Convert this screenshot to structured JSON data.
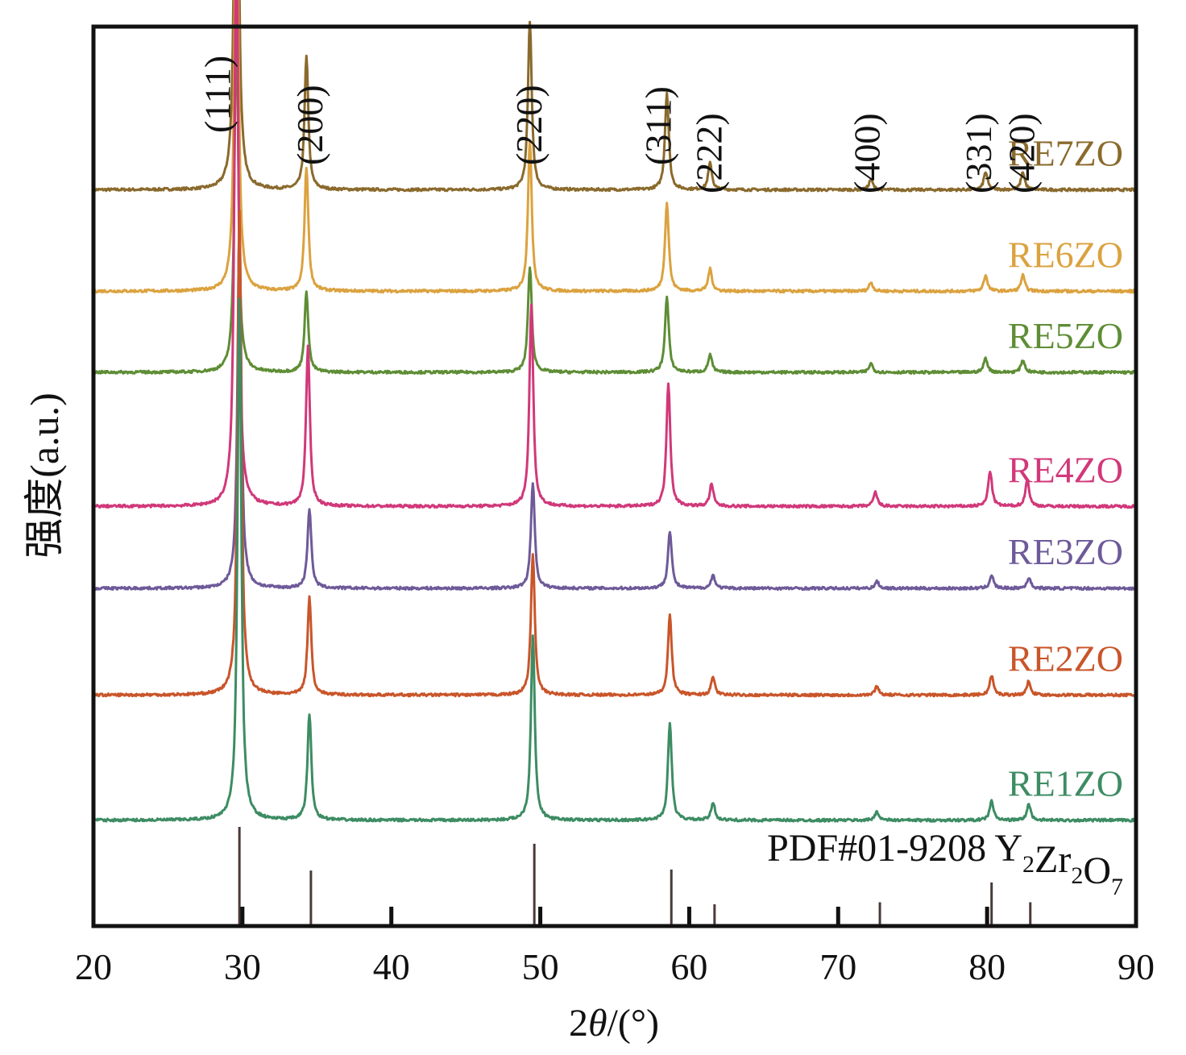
{
  "chart_data": {
    "type": "line",
    "title": "",
    "xlabel": "2θ/(°)",
    "xlabel_parts": {
      "prefix": "2",
      "theta": "θ",
      "suffix": "/(°)"
    },
    "ylabel": "强度(a.u.)",
    "xlim": [
      20,
      90
    ],
    "xticks": [
      20,
      30,
      40,
      50,
      60,
      70,
      80,
      90
    ],
    "grid": false,
    "legend": "inline labels at right end of each curve",
    "series": [
      {
        "name": "RE7ZO",
        "color": "#8a6a2c",
        "baseline": 0.835,
        "scale": 1.0,
        "peaks": [
          [
            29.6,
            0.62
          ],
          [
            34.3,
            0.15
          ],
          [
            49.3,
            0.19
          ],
          [
            58.5,
            0.11
          ],
          [
            61.4,
            0.03
          ],
          [
            72.2,
            0.012
          ],
          [
            79.9,
            0.02
          ],
          [
            82.4,
            0.02
          ]
        ]
      },
      {
        "name": "RE6ZO",
        "color": "#dba23f",
        "baseline": 0.72,
        "scale": 1.0,
        "peaks": [
          [
            29.6,
            0.52
          ],
          [
            34.3,
            0.14
          ],
          [
            49.3,
            0.17
          ],
          [
            58.5,
            0.1
          ],
          [
            61.4,
            0.025
          ],
          [
            72.2,
            0.01
          ],
          [
            79.9,
            0.018
          ],
          [
            82.4,
            0.018
          ]
        ]
      },
      {
        "name": "RE5ZO",
        "color": "#5e8d35",
        "baseline": 0.628,
        "scale": 1.0,
        "peaks": [
          [
            29.6,
            0.4
          ],
          [
            34.3,
            0.09
          ],
          [
            49.3,
            0.12
          ],
          [
            58.5,
            0.085
          ],
          [
            61.4,
            0.02
          ],
          [
            72.2,
            0.01
          ],
          [
            79.9,
            0.016
          ],
          [
            82.4,
            0.014
          ]
        ]
      },
      {
        "name": "RE4ZO",
        "color": "#d1387a",
        "baseline": 0.476,
        "scale": 1.0,
        "peaks": [
          [
            29.6,
            0.68
          ],
          [
            34.4,
            0.18
          ],
          [
            49.4,
            0.23
          ],
          [
            58.6,
            0.14
          ],
          [
            61.5,
            0.025
          ],
          [
            72.5,
            0.016
          ],
          [
            80.2,
            0.04
          ],
          [
            82.7,
            0.03
          ]
        ]
      },
      {
        "name": "RE3ZO",
        "color": "#6e5a99",
        "baseline": 0.383,
        "scale": 1.0,
        "peaks": [
          [
            29.8,
            0.41
          ],
          [
            34.5,
            0.09
          ],
          [
            49.5,
            0.12
          ],
          [
            58.7,
            0.065
          ],
          [
            61.6,
            0.015
          ],
          [
            72.6,
            0.008
          ],
          [
            80.3,
            0.015
          ],
          [
            82.8,
            0.012
          ]
        ]
      },
      {
        "name": "RE2ZO",
        "color": "#c9552a",
        "baseline": 0.262,
        "scale": 1.0,
        "peaks": [
          [
            29.8,
            0.55
          ],
          [
            34.5,
            0.11
          ],
          [
            49.5,
            0.16
          ],
          [
            58.7,
            0.09
          ],
          [
            61.6,
            0.02
          ],
          [
            72.6,
            0.01
          ],
          [
            80.3,
            0.022
          ],
          [
            82.8,
            0.016
          ]
        ]
      },
      {
        "name": "RE1ZO",
        "color": "#3d8c63",
        "baseline": 0.12,
        "scale": 1.0,
        "peaks": [
          [
            29.8,
            0.59
          ],
          [
            34.5,
            0.12
          ],
          [
            49.5,
            0.21
          ],
          [
            58.7,
            0.11
          ],
          [
            61.6,
            0.02
          ],
          [
            72.6,
            0.01
          ],
          [
            80.3,
            0.022
          ],
          [
            82.8,
            0.018
          ]
        ]
      }
    ],
    "reference": {
      "label_prefix": "PDF#01-9208 ",
      "formula": [
        {
          "t": "Y",
          "sub": "2"
        },
        {
          "t": "Zr",
          "sub": "2"
        },
        {
          "t": "O",
          "sub": "7"
        }
      ],
      "color": "#4a3a38",
      "sticks": [
        [
          29.8,
          1.0
        ],
        [
          34.6,
          0.56
        ],
        [
          49.6,
          0.83
        ],
        [
          58.8,
          0.57
        ],
        [
          61.7,
          0.22
        ],
        [
          72.8,
          0.24
        ],
        [
          80.3,
          0.44
        ],
        [
          82.9,
          0.24
        ]
      ]
    },
    "hkl_labels": [
      {
        "label": "(111)",
        "x": 28.3
      },
      {
        "label": "(200)",
        "x": 34.5
      },
      {
        "label": "(220)",
        "x": 49.2
      },
      {
        "label": "(311)",
        "x": 57.9
      },
      {
        "label": "(222)",
        "x": 61.3
      },
      {
        "label": "(400)",
        "x": 71.9
      },
      {
        "label": "(331)",
        "x": 79.4
      },
      {
        "label": "(420)",
        "x": 82.3
      }
    ]
  }
}
